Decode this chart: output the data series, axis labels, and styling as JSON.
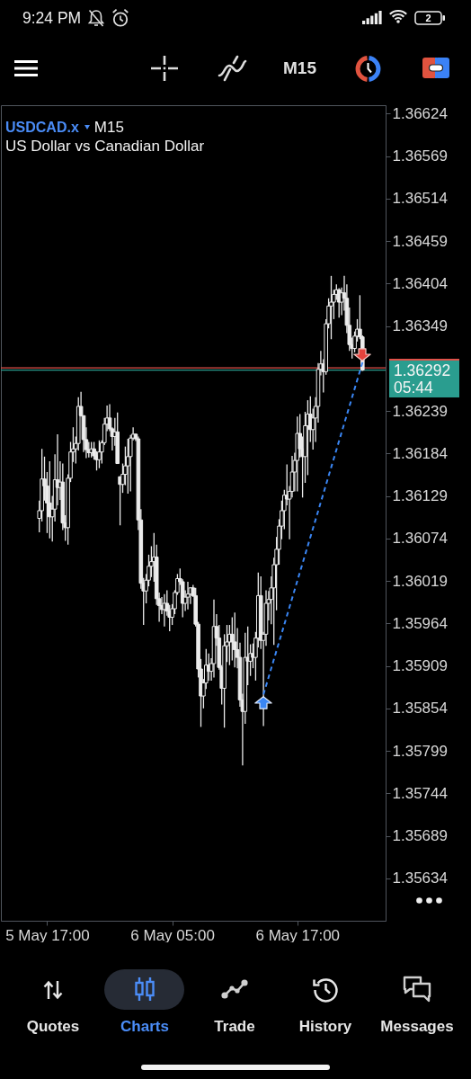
{
  "chart_data": {
    "type": "candlestick",
    "title": "USDCAD.x",
    "subtitle": "US Dollar vs Canadian Dollar",
    "x": [
      "--05-05T16:15",
      "--05-05T16:30",
      "--05-05T16:45",
      "--05-05T17:00",
      "--05-05T17:15",
      "--05-05T17:30",
      "--05-05T17:45",
      "--05-05T18:00",
      "--05-05T18:15",
      "--05-05T18:30",
      "--05-05T18:45",
      "--05-05T19:00",
      "--05-05T19:15",
      "--05-05T19:30",
      "--05-05T19:45",
      "--05-05T20:00",
      "--05-05T20:15",
      "--05-05T20:30",
      "--05-05T20:45",
      "--05-05T21:00",
      "--05-05T21:15",
      "--05-05T21:30",
      "--05-05T21:45",
      "--05-05T22:00",
      "--05-05T22:15",
      "--05-05T22:30",
      "--05-05T22:45",
      "--05-05T23:00",
      "--05-05T23:15",
      "--05-05T23:30",
      "--05-05T23:45",
      "--05-06T00:00",
      "--05-06T00:15",
      "--05-06T00:30",
      "--05-06T00:45",
      "--05-06T01:00",
      "--05-06T01:15",
      "--05-06T01:30",
      "--05-06T01:45",
      "--05-06T02:00",
      "--05-06T02:15",
      "--05-06T02:30",
      "--05-06T02:45",
      "--05-06T03:00",
      "--05-06T03:15",
      "--05-06T03:30",
      "--05-06T03:45",
      "--05-06T04:00",
      "--05-06T04:15",
      "--05-06T04:30",
      "--05-06T04:45",
      "--05-06T05:00",
      "--05-06T05:15",
      "--05-06T05:30",
      "--05-06T05:45",
      "--05-06T06:00",
      "--05-06T06:15",
      "--05-06T06:30",
      "--05-06T06:45",
      "--05-06T07:00",
      "--05-06T07:15",
      "--05-06T07:30",
      "--05-06T07:45",
      "--05-06T08:00",
      "--05-06T08:15",
      "--05-06T08:30",
      "--05-06T08:45",
      "--05-06T09:00",
      "--05-06T09:15",
      "--05-06T09:30",
      "--05-06T09:45",
      "--05-06T10:00",
      "--05-06T10:15",
      "--05-06T10:30",
      "--05-06T10:45",
      "--05-06T11:00",
      "--05-06T11:15",
      "--05-06T11:30",
      "--05-06T11:45",
      "--05-06T12:00",
      "--05-06T12:15",
      "--05-06T12:30",
      "--05-06T12:45",
      "--05-06T13:00",
      "--05-06T13:15",
      "--05-06T13:30",
      "--05-06T13:45",
      "--05-06T14:00",
      "--05-06T14:15",
      "--05-06T14:30",
      "--05-06T14:45",
      "--05-06T15:00",
      "--05-06T15:15",
      "--05-06T15:30",
      "--05-06T15:45",
      "--05-06T16:00",
      "--05-06T16:15",
      "--05-06T16:30",
      "--05-06T16:45",
      "--05-06T17:00",
      "--05-06T17:15",
      "--05-06T17:30",
      "--05-06T17:45",
      "--05-06T18:00",
      "--05-06T18:15",
      "--05-06T18:30",
      "--05-06T18:45",
      "--05-06T19:00",
      "--05-06T19:15",
      "--05-06T19:30",
      "--05-06T19:45",
      "--05-06T20:00",
      "--05-06T20:15",
      "--05-06T20:30",
      "--05-06T20:45",
      "--05-06T21:00",
      "--05-06T21:15",
      "--05-06T21:30",
      "--05-06T21:45",
      "--05-06T22:00",
      "--05-06T22:15",
      "--05-06T22:30",
      "--05-06T22:45",
      "--05-06T23:00",
      "--05-06T23:15"
    ],
    "ohlc": [
      [
        1.361,
        1.36123,
        1.36082,
        1.3611
      ],
      [
        1.3611,
        1.3619,
        1.36096,
        1.36151
      ],
      [
        1.36151,
        1.3618,
        1.36123,
        1.36142
      ],
      [
        1.36142,
        1.3616,
        1.36081,
        1.3612
      ],
      [
        1.3612,
        1.36174,
        1.36074,
        1.36102
      ],
      [
        1.36102,
        1.36129,
        1.3607,
        1.36112
      ],
      [
        1.36112,
        1.36183,
        1.36096,
        1.3615
      ],
      [
        1.3615,
        1.36209,
        1.36117,
        1.3614
      ],
      [
        1.3614,
        1.36174,
        1.36124,
        1.36147
      ],
      [
        1.36147,
        1.36171,
        1.36085,
        1.36094
      ],
      [
        1.36094,
        1.36104,
        1.36071,
        1.36088
      ],
      [
        1.36088,
        1.36157,
        1.36066,
        1.36152
      ],
      [
        1.36152,
        1.36199,
        1.36147,
        1.36186
      ],
      [
        1.36186,
        1.36218,
        1.36173,
        1.3619
      ],
      [
        1.3619,
        1.36206,
        1.36171,
        1.36197
      ],
      [
        1.36197,
        1.36257,
        1.36188,
        1.36245
      ],
      [
        1.36245,
        1.36264,
        1.36232,
        1.36233
      ],
      [
        1.36233,
        1.36233,
        1.36186,
        1.36202
      ],
      [
        1.36202,
        1.36218,
        1.36178,
        1.36189
      ],
      [
        1.36189,
        1.36199,
        1.36179,
        1.36185
      ],
      [
        1.36185,
        1.36199,
        1.36179,
        1.3619
      ],
      [
        1.3619,
        1.36199,
        1.36176,
        1.36181
      ],
      [
        1.36181,
        1.36187,
        1.36162,
        1.36176
      ],
      [
        1.36176,
        1.36201,
        1.36165,
        1.36186
      ],
      [
        1.36186,
        1.36201,
        1.36171,
        1.36198
      ],
      [
        1.36198,
        1.3623,
        1.36195,
        1.36222
      ],
      [
        1.36222,
        1.36246,
        1.36213,
        1.3623
      ],
      [
        1.3623,
        1.36248,
        1.36213,
        1.36216
      ],
      [
        1.36216,
        1.36218,
        1.36188,
        1.36206
      ],
      [
        1.36206,
        1.3623,
        1.36194,
        1.36212
      ],
      [
        1.36212,
        1.36237,
        1.36171,
        1.36171
      ],
      [
        1.36154,
        1.36154,
        1.36091,
        1.36144
      ],
      [
        1.36144,
        1.36171,
        1.36133,
        1.36157
      ],
      [
        1.36157,
        1.36193,
        1.36143,
        1.36168
      ],
      [
        1.36168,
        1.36203,
        1.36132,
        1.3618
      ],
      [
        1.3618,
        1.36208,
        1.36135,
        1.36204
      ],
      [
        1.36204,
        1.36218,
        1.36201,
        1.36209
      ],
      [
        1.36209,
        1.3621,
        1.362,
        1.36203
      ],
      [
        1.36203,
        1.36206,
        1.36085,
        1.36098
      ],
      [
        1.36098,
        1.36112,
        1.36009,
        1.36016
      ],
      [
        1.36016,
        1.36023,
        1.35962,
        1.36006
      ],
      [
        1.36006,
        1.36028,
        1.3599,
        1.3602
      ],
      [
        1.3602,
        1.36053,
        1.36012,
        1.36038
      ],
      [
        1.36038,
        1.36064,
        1.36024,
        1.36044
      ],
      [
        1.36044,
        1.36081,
        1.36018,
        1.3605
      ],
      [
        1.3605,
        1.36066,
        1.35988,
        1.35996
      ],
      [
        1.35996,
        1.36004,
        1.35966,
        1.35987
      ],
      [
        1.35987,
        1.35998,
        1.35976,
        1.35982
      ],
      [
        1.35982,
        1.36002,
        1.3596,
        1.3599
      ],
      [
        1.3599,
        1.36007,
        1.35974,
        1.3598
      ],
      [
        1.3598,
        1.35988,
        1.35954,
        1.35972
      ],
      [
        1.35972,
        1.35989,
        1.35962,
        1.35983
      ],
      [
        1.35983,
        1.36007,
        1.35976,
        1.36004
      ],
      [
        1.36004,
        1.36028,
        1.36001,
        1.36022
      ],
      [
        1.36022,
        1.36035,
        1.36014,
        1.36018
      ],
      [
        1.36018,
        1.36021,
        1.35972,
        1.3599
      ],
      [
        1.3599,
        1.36007,
        1.3598,
        1.35998
      ],
      [
        1.35998,
        1.36018,
        1.35982,
        1.36002
      ],
      [
        1.36002,
        1.36011,
        1.35989,
        1.3601
      ],
      [
        1.3601,
        1.36014,
        1.35998,
        1.36
      ],
      [
        1.36,
        1.3601,
        1.3596,
        1.35963
      ],
      [
        1.35963,
        1.35966,
        1.35894,
        1.35905
      ],
      [
        1.35905,
        1.35918,
        1.3583,
        1.3587
      ],
      [
        1.3587,
        1.35892,
        1.35854,
        1.35887
      ],
      [
        1.35887,
        1.35931,
        1.35879,
        1.3591
      ],
      [
        1.3591,
        1.35925,
        1.3589,
        1.35902
      ],
      [
        1.35902,
        1.35919,
        1.3589,
        1.35912
      ],
      [
        1.35912,
        1.35995,
        1.35894,
        1.3596
      ],
      [
        1.3596,
        1.35976,
        1.35935,
        1.35945
      ],
      [
        1.35945,
        1.35962,
        1.35904,
        1.35907
      ],
      [
        1.35907,
        1.3591,
        1.35859,
        1.3588
      ],
      [
        1.3588,
        1.3595,
        1.35829,
        1.35935
      ],
      [
        1.35935,
        1.35962,
        1.35914,
        1.3594
      ],
      [
        1.3594,
        1.35962,
        1.3591,
        1.3595
      ],
      [
        1.3595,
        1.35972,
        1.35916,
        1.3594
      ],
      [
        1.3594,
        1.35978,
        1.35907,
        1.3593
      ],
      [
        1.3593,
        1.35958,
        1.35906,
        1.3592
      ],
      [
        1.3592,
        1.35939,
        1.35856,
        1.35865
      ],
      [
        1.35865,
        1.35873,
        1.3578,
        1.3585
      ],
      [
        1.3585,
        1.35952,
        1.35834,
        1.3592
      ],
      [
        1.3592,
        1.3596,
        1.35884,
        1.35915
      ],
      [
        1.35915,
        1.35937,
        1.35896,
        1.35925
      ],
      [
        1.35925,
        1.35938,
        1.35906,
        1.3592
      ],
      [
        1.3592,
        1.35953,
        1.3589,
        1.35945
      ],
      [
        1.35945,
        1.3603,
        1.35933,
        1.36
      ],
      [
        1.36,
        1.36025,
        1.35931,
        1.35942
      ],
      [
        1.35942,
        1.35953,
        1.35831,
        1.3595
      ],
      [
        1.3595,
        1.36007,
        1.35935,
        1.3599
      ],
      [
        1.3599,
        1.36006,
        1.35968,
        1.35995
      ],
      [
        1.35995,
        1.36025,
        1.35963,
        1.3601
      ],
      [
        1.3601,
        1.36049,
        1.35936,
        1.3604
      ],
      [
        1.3604,
        1.36076,
        1.35981,
        1.3606
      ],
      [
        1.3606,
        1.36099,
        1.3604,
        1.3609
      ],
      [
        1.3609,
        1.36123,
        1.36073,
        1.3611
      ],
      [
        1.3611,
        1.36137,
        1.36086,
        1.3613
      ],
      [
        1.3613,
        1.3617,
        1.36117,
        1.36125
      ],
      [
        1.36125,
        1.36142,
        1.36073,
        1.36135
      ],
      [
        1.36135,
        1.36181,
        1.36127,
        1.3616
      ],
      [
        1.3616,
        1.36185,
        1.36135,
        1.36175
      ],
      [
        1.36175,
        1.36232,
        1.36135,
        1.3621
      ],
      [
        1.3621,
        1.36235,
        1.36179,
        1.3619
      ],
      [
        1.3619,
        1.36206,
        1.36127,
        1.3618
      ],
      [
        1.3618,
        1.36238,
        1.36146,
        1.3622
      ],
      [
        1.3622,
        1.36253,
        1.36156,
        1.36235
      ],
      [
        1.36235,
        1.36258,
        1.36199,
        1.36215
      ],
      [
        1.36215,
        1.36242,
        1.36189,
        1.3623
      ],
      [
        1.3623,
        1.36257,
        1.36199,
        1.36245
      ],
      [
        1.36245,
        1.36301,
        1.36224,
        1.36293
      ],
      [
        1.36293,
        1.36317,
        1.36285,
        1.363
      ],
      [
        1.363,
        1.36306,
        1.36263,
        1.3629
      ],
      [
        1.3629,
        1.36358,
        1.36286,
        1.36352
      ],
      [
        1.36352,
        1.36385,
        1.36346,
        1.36375
      ],
      [
        1.36375,
        1.36414,
        1.36332,
        1.3638
      ],
      [
        1.3638,
        1.36396,
        1.36358,
        1.3639
      ],
      [
        1.3639,
        1.36403,
        1.36383,
        1.36396
      ],
      [
        1.36396,
        1.36398,
        1.3636,
        1.3638
      ],
      [
        1.3638,
        1.36399,
        1.36363,
        1.36392
      ],
      [
        1.36392,
        1.36414,
        1.36369,
        1.36385
      ],
      [
        1.36385,
        1.36403,
        1.3634,
        1.3635
      ],
      [
        1.3635,
        1.36373,
        1.36317,
        1.36325
      ],
      [
        1.36325,
        1.36334,
        1.36307,
        1.3632
      ],
      [
        1.3632,
        1.36342,
        1.36315,
        1.36336
      ],
      [
        1.36336,
        1.36358,
        1.36329,
        1.36345
      ],
      [
        1.36345,
        1.36389,
        1.36332,
        1.36335
      ],
      [
        1.36335,
        1.36337,
        1.36291,
        1.36292
      ]
    ],
    "color": "#ececec",
    "series": [
      {
        "type": "line",
        "x": [
          "--05-06T13:45",
          "--05-06T23:15"
        ],
        "values": [
          1.35872,
          1.36302
        ],
        "color": "#3a86f4",
        "line_style": "dashed"
      }
    ],
    "xlim": [
      "--05-05T12:34",
      "--05-07T01:28"
    ],
    "xticks": [
      {
        "value": "--05-05T17:00",
        "label": "5 May 17:00"
      },
      {
        "value": "--05-06T05:00",
        "label": "6 May 05:00"
      },
      {
        "value": "--05-06T17:00",
        "label": "6 May 17:00"
      }
    ],
    "ylim": [
      1.35579,
      1.36635
    ],
    "yticks": [
      1.35634,
      1.35689,
      1.35744,
      1.35799,
      1.35854,
      1.35909,
      1.35964,
      1.36019,
      1.36074,
      1.36129,
      1.36184,
      1.36239,
      1.36349,
      1.36404,
      1.36459,
      1.36514,
      1.36569,
      1.36624
    ],
    "ref_lines": [
      {
        "axis": "y",
        "value": 1.36295,
        "color": "#e0524a"
      },
      {
        "axis": "y",
        "value": 1.36292,
        "label": "1.36292",
        "color": "#2a9d8f"
      }
    ],
    "annotations": [
      "9:24 PM",
      "2",
      "M15",
      "M15",
      "05:44",
      "Quotes",
      "Charts",
      "Trade",
      "History",
      "Messages"
    ]
  }
}
